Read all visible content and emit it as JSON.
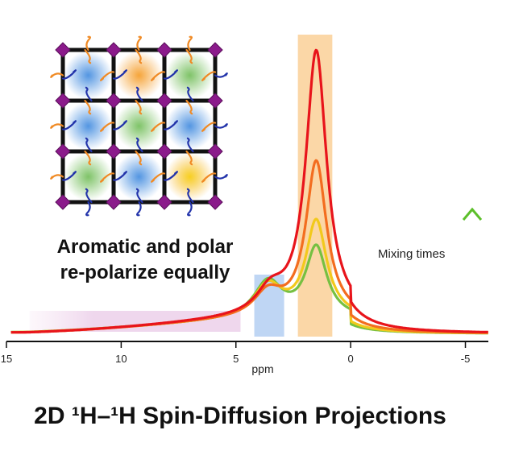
{
  "annotation": {
    "line1": "Aromatic and polar",
    "line2": "re-polarize equally"
  },
  "legend": {
    "label": "Mixing times"
  },
  "footer_title": "2D ¹H–¹H Spin-Diffusion Projections",
  "colors": {
    "highlight_aliphatic": "#f9c98a",
    "highlight_aromatic": "#a9c8f0",
    "highlight_broad": "#e8c7e8",
    "framework_node": "#8b1a8b",
    "framework_linker": "#111111",
    "side_chain_orange": "#f08a24",
    "side_chain_blue": "#2233aa",
    "glow_blue": "#4a90e0",
    "glow_orange": "#f5a030",
    "glow_green": "#78c060",
    "glow_yellow": "#f7d020"
  },
  "chart_data": {
    "type": "line",
    "xlabel": "ppm",
    "xlim": [
      15,
      -6
    ],
    "xticks": [
      15,
      10,
      5,
      0,
      -5
    ],
    "xtick_labels": [
      "15",
      "10",
      "5",
      "0",
      "-5"
    ],
    "ylim": [
      0,
      1
    ],
    "grid": false,
    "highlight_regions": [
      {
        "from": 14,
        "to": 4.8,
        "color": "#e8c7e8"
      },
      {
        "from": 4.2,
        "to": 2.9,
        "color": "#a9c8f0"
      },
      {
        "from": 2.3,
        "to": 0.8,
        "color": "#f9c98a"
      }
    ],
    "series": [
      {
        "color": "#e8141b",
        "peak1_ppm": 1.5,
        "peak1_height": 0.935,
        "peak2_ppm": 3.5,
        "peak2_height": 0.11,
        "baseline_at_14": 0.012
      },
      {
        "color": "#f36d1f",
        "peak1_ppm": 1.5,
        "peak1_height": 0.555,
        "peak2_ppm": 3.6,
        "peak2_height": 0.115,
        "baseline_at_14": 0.015
      },
      {
        "color": "#f2c91c",
        "peak1_ppm": 1.5,
        "peak1_height": 0.35,
        "peak2_ppm": 3.6,
        "peak2_height": 0.155,
        "baseline_at_14": 0.018
      },
      {
        "color": "#76c041",
        "peak1_ppm": 1.5,
        "peak1_height": 0.26,
        "peak2_ppm": 3.6,
        "peak2_height": 0.175,
        "baseline_at_14": 0.02
      }
    ]
  }
}
